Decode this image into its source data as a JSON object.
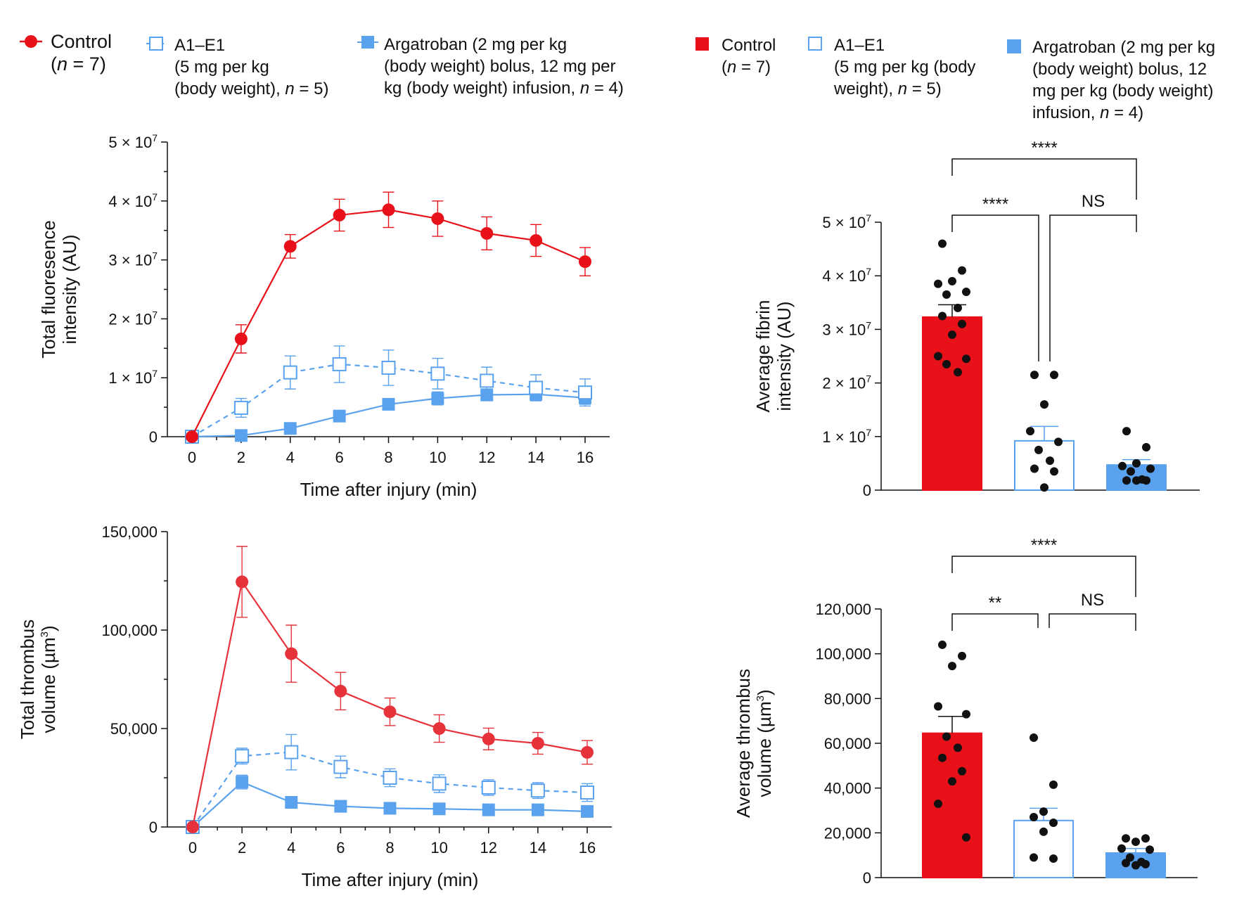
{
  "colors": {
    "control_red": "#e8111a",
    "control_red_light": "#e6333b",
    "blue_fill": "#5aa2ee",
    "blue_line": "#5aa2ee",
    "black": "#111111"
  },
  "legend_left": {
    "control_line1": "Control",
    "control_line2": "(n = 7)",
    "a1_line1": "A1–E1",
    "a1_line2": "(5 mg per kg",
    "a1_line3": "(body weight), n = 5)",
    "arg_line1": "Argatroban (2 mg per kg",
    "arg_line2": "(body weight) bolus, 12 mg per",
    "arg_line3": "kg (body weight) infusion, n = 4)"
  },
  "legend_right": {
    "control_line1": "Control",
    "control_line2": "(n = 7)",
    "a1_line1": "A1–E1",
    "a1_line2": "(5 mg per kg (body",
    "a1_line3": "weight), n = 5)",
    "arg_line1": "Argatroban (2 mg per kg",
    "arg_line2": "(body weight) bolus, 12",
    "arg_line3": "mg per kg (body weight)",
    "arg_line4": "infusion, n = 4)"
  },
  "chart_data": [
    {
      "id": "fluorescence-line",
      "type": "line",
      "ylabel_line1": "Total fluoresence",
      "ylabel_line2": "intensity (AU)",
      "xlabel": "Time after injury (min)",
      "x": [
        0,
        2,
        4,
        6,
        8,
        10,
        12,
        14,
        16
      ],
      "xlim": [
        0,
        16
      ],
      "ylim": [
        0,
        50000000
      ],
      "yticks": [
        0,
        10000000,
        20000000,
        30000000,
        40000000,
        50000000
      ],
      "ytick_labels": [
        "0",
        "1 × 10",
        "2 × 10",
        "3 × 10",
        "4 × 10",
        "5 × 10"
      ],
      "ytick_exp": [
        "",
        "7",
        "7",
        "7",
        "7",
        "7"
      ],
      "series": [
        {
          "name": "Control",
          "values": [
            0,
            16600000,
            32300000,
            37600000,
            38500000,
            37000000,
            34500000,
            33300000,
            29700000
          ],
          "err": [
            0,
            2400000,
            2000000,
            2700000,
            3000000,
            3000000,
            2800000,
            2700000,
            2400000
          ]
        },
        {
          "name": "A1–E1",
          "values": [
            0,
            4900000,
            10900000,
            12300000,
            11700000,
            10700000,
            9500000,
            8300000,
            7500000
          ],
          "err": [
            0,
            1600000,
            2800000,
            3100000,
            3000000,
            2600000,
            2300000,
            2200000,
            2300000
          ]
        },
        {
          "name": "Argatroban",
          "values": [
            0,
            200000,
            1400000,
            3500000,
            5500000,
            6500000,
            7100000,
            7200000,
            6600000
          ],
          "err": [
            0,
            300000,
            300000,
            600000,
            900000,
            1100000,
            1000000,
            1100000,
            1100000
          ]
        }
      ]
    },
    {
      "id": "volume-line",
      "type": "line",
      "ylabel_line1": "Total thrombus",
      "ylabel_line2": "volume (µm",
      "ylabel_sup": "3",
      "ylabel_end": ")",
      "xlabel": "Time after injury (min)",
      "x": [
        0,
        2,
        4,
        6,
        8,
        10,
        12,
        14,
        16
      ],
      "xlim": [
        0,
        16
      ],
      "ylim": [
        0,
        150000
      ],
      "yticks": [
        0,
        50000,
        100000,
        150000
      ],
      "ytick_labels": [
        "0",
        "50,000",
        "100,000",
        "150,000"
      ],
      "series": [
        {
          "name": "Control",
          "values": [
            0,
            124500,
            88000,
            69000,
            58500,
            50000,
            44700,
            42500,
            37900
          ],
          "err": [
            0,
            18000,
            14500,
            9500,
            7000,
            7000,
            5500,
            5500,
            6000
          ]
        },
        {
          "name": "A1–E1",
          "values": [
            0,
            36000,
            38000,
            30500,
            25000,
            22000,
            20000,
            18500,
            17500
          ],
          "err": [
            0,
            4000,
            9000,
            5500,
            4500,
            4500,
            4000,
            4000,
            4500
          ]
        },
        {
          "name": "Argatroban",
          "values": [
            0,
            22800,
            12500,
            10500,
            9500,
            9200,
            8700,
            8700,
            7900
          ],
          "err": [
            0,
            3500,
            2000,
            1500,
            1200,
            1200,
            1000,
            1200,
            1200
          ]
        }
      ]
    },
    {
      "id": "fibrin-bar",
      "type": "bar",
      "ylabel_line1": "Average fibrin",
      "ylabel_line2": "intensity (AU)",
      "categories": [
        "Control",
        "A1–E1",
        "Argatroban"
      ],
      "ylim": [
        0,
        50000000
      ],
      "yticks": [
        0,
        10000000,
        20000000,
        30000000,
        40000000,
        50000000
      ],
      "ytick_labels": [
        "0",
        "1 × 10",
        "2 × 10",
        "3 × 10",
        "4 × 10",
        "5 × 10"
      ],
      "ytick_exp": [
        "",
        "7",
        "7",
        "7",
        "7",
        "7"
      ],
      "values": [
        32300000,
        9200000,
        4700000
      ],
      "err": [
        2300000,
        2700000,
        1000000
      ],
      "points": [
        [
          46000000,
          41000000,
          39000000,
          38500000,
          37000000,
          36500000,
          34000000,
          32500000,
          31000000,
          29000000,
          25000000,
          24500000,
          23500000,
          22000000
        ],
        [
          21500000,
          21500000,
          16000000,
          11000000,
          9000000,
          7500000,
          5500000,
          4000000,
          3500000,
          500000
        ],
        [
          11000000,
          8000000,
          5000000,
          4500000,
          4000000,
          3500000,
          2000000,
          1800000,
          1800000,
          1800000
        ]
      ],
      "sig": {
        "top": "****",
        "left": "****",
        "right": "NS"
      }
    },
    {
      "id": "volume-bar",
      "type": "bar",
      "ylabel_line1": "Average thrombus",
      "ylabel_line2": "volume (µm",
      "ylabel_sup": "3",
      "ylabel_end": ")",
      "categories": [
        "Control",
        "A1–E1",
        "Argatroban"
      ],
      "ylim": [
        0,
        120000
      ],
      "yticks": [
        0,
        20000,
        40000,
        60000,
        80000,
        100000,
        120000
      ],
      "ytick_labels": [
        "0",
        "20,000",
        "40,000",
        "60,000",
        "80,000",
        "100,000",
        "120,000"
      ],
      "values": [
        64500,
        25500,
        11000
      ],
      "err": [
        7500,
        5500,
        2000
      ],
      "points": [
        [
          104000,
          99000,
          94500,
          76500,
          73000,
          63000,
          58000,
          53500,
          47500,
          43000,
          33000,
          18000
        ],
        [
          62500,
          41500,
          29500,
          27000,
          24500,
          20500,
          9000,
          8500
        ],
        [
          17500,
          17500,
          16000,
          13000,
          12500,
          9000,
          7000,
          6500,
          6000,
          5500
        ]
      ],
      "sig": {
        "top": "****",
        "left": "**",
        "right": "NS"
      }
    }
  ]
}
